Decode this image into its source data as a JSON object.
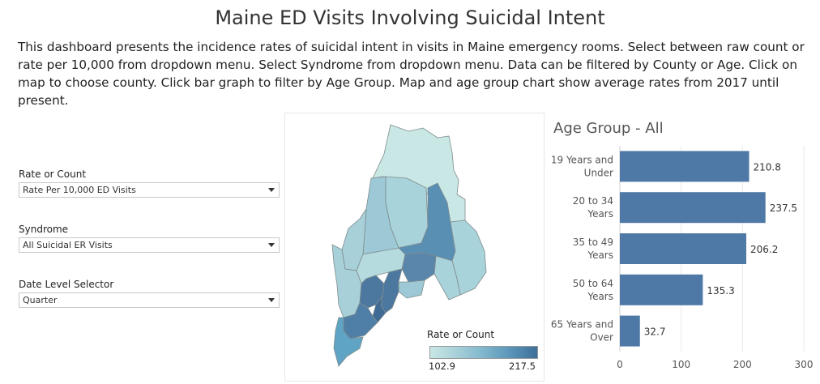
{
  "header": {
    "title": "Maine ED Visits Involving Suicidal Intent",
    "description": "This dashboard presents the incidence rates of suicidal intent in visits in Maine emergency rooms.  Select between raw count or rate per 10,000 from dropdown menu. Select Syndrome from dropdown menu. Data can be filtered by County or Age. Click on map to choose county. Click bar graph to filter by Age Group. Map and age group chart show average rates from 2017 until present."
  },
  "filters": {
    "rate_or_count": {
      "label": "Rate or Count",
      "value": "Rate Per 10,000 ED Visits"
    },
    "syndrome": {
      "label": "Syndrome",
      "value": "All Suicidal ER Visits"
    },
    "date_level": {
      "label": "Date Level Selector",
      "value": "Quarter"
    }
  },
  "map": {
    "legend_title": "Rate or Count",
    "legend_min": "102.9",
    "legend_max": "217.5",
    "colors": {
      "low": "#c9e7e4",
      "mid": "#7fb6cc",
      "high": "#3e6f99"
    }
  },
  "age_chart": {
    "title": "Age Group - All",
    "bar_color": "#4e79a7"
  },
  "chart_data": {
    "type": "bar",
    "orientation": "horizontal",
    "categories": [
      [
        "19 Years and",
        "Under"
      ],
      [
        "20 to 34",
        "Years"
      ],
      [
        "35 to 49",
        "Years"
      ],
      [
        "50 to 64",
        "Years"
      ],
      [
        "65 Years and",
        "Over"
      ]
    ],
    "values": [
      210.8,
      237.5,
      206.2,
      135.3,
      32.7
    ],
    "value_labels": [
      "210.8",
      "237.5",
      "206.2",
      "135.3",
      "32.7"
    ],
    "xlim": [
      0,
      300
    ],
    "x_ticks": [
      "0",
      "100",
      "200",
      "300"
    ],
    "grid": true,
    "title": "Age Group - All"
  }
}
